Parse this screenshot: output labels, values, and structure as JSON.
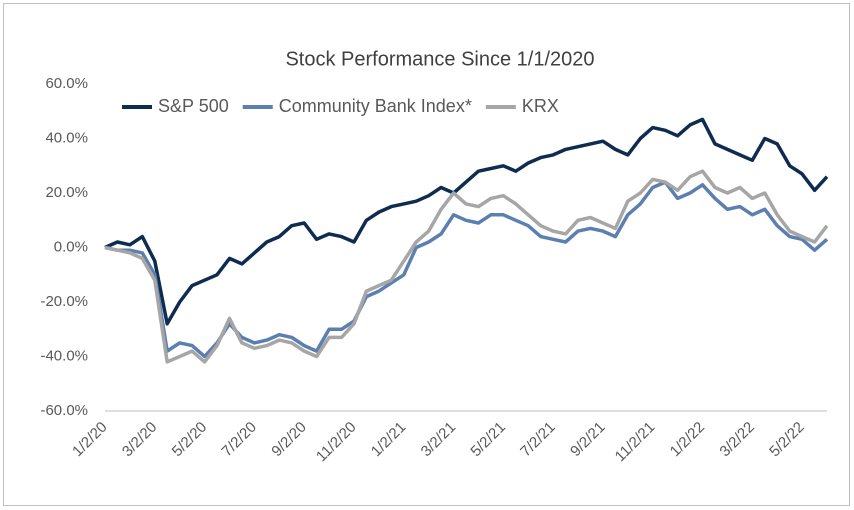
{
  "chart_data": {
    "type": "line",
    "title": "Stock Performance Since 1/1/2020",
    "categories": [
      "1/2/20",
      null,
      null,
      null,
      "3/2/20",
      null,
      null,
      null,
      "5/2/20",
      null,
      null,
      null,
      "7/2/20",
      null,
      null,
      null,
      "9/2/20",
      null,
      null,
      null,
      "11/2/20",
      null,
      null,
      null,
      "1/2/21",
      null,
      null,
      null,
      "3/2/21",
      null,
      null,
      null,
      "5/2/21",
      null,
      null,
      null,
      "7/2/21",
      null,
      null,
      null,
      "9/2/21",
      null,
      null,
      null,
      "11/2/21",
      null,
      null,
      null,
      "1/2/22",
      null,
      null,
      null,
      "3/2/22",
      null,
      null,
      null,
      "5/2/22",
      null,
      null
    ],
    "series": [
      {
        "name": "S&P 500",
        "color": "#0e2c50",
        "values": [
          0,
          2,
          1,
          4,
          -5,
          -28,
          -20,
          -14,
          -12,
          -10,
          -4,
          -6,
          -2,
          2,
          4,
          8,
          9,
          3,
          5,
          4,
          2,
          10,
          13,
          15,
          16,
          17,
          19,
          22,
          20,
          24,
          28,
          29,
          30,
          28,
          31,
          33,
          34,
          36,
          37,
          38,
          39,
          36,
          34,
          40,
          44,
          43,
          41,
          45,
          47,
          38,
          36,
          34,
          32,
          40,
          38,
          30,
          27,
          21,
          26
        ]
      },
      {
        "name": "Community Bank Index*",
        "color": "#5b7fb0",
        "values": [
          0,
          -1,
          -1,
          -2,
          -10,
          -38,
          -35,
          -36,
          -40,
          -35,
          -28,
          -33,
          -35,
          -34,
          -32,
          -33,
          -36,
          -38,
          -30,
          -30,
          -27,
          -18,
          -16,
          -13,
          -10,
          0,
          2,
          5,
          12,
          10,
          9,
          12,
          12,
          10,
          8,
          4,
          3,
          2,
          6,
          7,
          6,
          4,
          12,
          16,
          22,
          24,
          18,
          20,
          23,
          18,
          14,
          15,
          12,
          14,
          8,
          4,
          3,
          -1,
          3
        ]
      },
      {
        "name": "KRX",
        "color": "#a6a6a6",
        "values": [
          0,
          -1,
          -2,
          -4,
          -12,
          -42,
          -40,
          -38,
          -42,
          -36,
          -26,
          -35,
          -37,
          -36,
          -34,
          -35,
          -38,
          -40,
          -33,
          -33,
          -28,
          -16,
          -14,
          -12,
          -5,
          2,
          6,
          14,
          20,
          16,
          15,
          18,
          19,
          16,
          12,
          8,
          6,
          5,
          10,
          11,
          9,
          7,
          17,
          20,
          25,
          24,
          21,
          26,
          28,
          22,
          20,
          22,
          18,
          20,
          12,
          6,
          4,
          2,
          8
        ]
      }
    ],
    "ylim": [
      -60,
      60
    ],
    "yticks": [
      {
        "value": -60,
        "label": "-60.0%"
      },
      {
        "value": -40,
        "label": "-40.0%"
      },
      {
        "value": -20,
        "label": "-20.0%"
      },
      {
        "value": 0,
        "label": "0.0%"
      },
      {
        "value": 20,
        "label": "20.0%"
      },
      {
        "value": 40,
        "label": "40.0%"
      },
      {
        "value": 60,
        "label": "60.0%"
      }
    ],
    "grid": false,
    "legend": "top-left"
  }
}
